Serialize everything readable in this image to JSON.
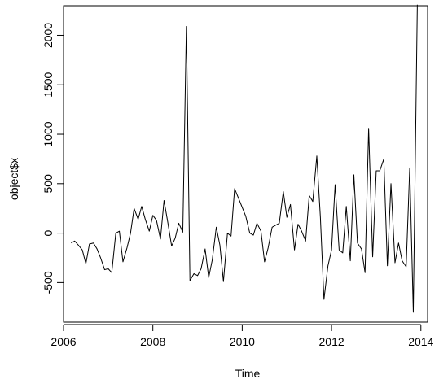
{
  "chart_data": {
    "type": "line",
    "title": "",
    "xlabel": "Time",
    "ylabel": "object$x",
    "xlim": [
      2006.0,
      2014.15
    ],
    "ylim": [
      -900,
      2300
    ],
    "xticks": [
      2006,
      2008,
      2010,
      2012,
      2014
    ],
    "yticks": [
      -500,
      0,
      500,
      1000,
      1500,
      2000
    ],
    "xtick_labels": [
      "2006",
      "2008",
      "2010",
      "2012",
      "2014"
    ],
    "ytick_labels": [
      "-500",
      "0",
      "500",
      "1000",
      "1500",
      "2000"
    ],
    "grid": false,
    "legend": "none",
    "line_color": "#000000",
    "series": [
      {
        "x": [
          2006.17,
          2006.25,
          2006.33,
          2006.42,
          2006.5,
          2006.58,
          2006.67,
          2006.75,
          2006.83,
          2006.92,
          2007.0,
          2007.08,
          2007.17,
          2007.25,
          2007.33,
          2007.42,
          2007.5,
          2007.58,
          2007.67,
          2007.75,
          2007.83,
          2007.92,
          2008.0,
          2008.08,
          2008.17,
          2008.25,
          2008.33,
          2008.42,
          2008.5,
          2008.58,
          2008.67,
          2008.75,
          2008.83,
          2008.92,
          2009.0,
          2009.08,
          2009.17,
          2009.25,
          2009.33,
          2009.42,
          2009.5,
          2009.58,
          2009.67,
          2009.75,
          2009.83,
          2009.92,
          2010.0,
          2010.08,
          2010.17,
          2010.25,
          2010.33,
          2010.42,
          2010.5,
          2010.58,
          2010.67,
          2010.75,
          2010.83,
          2010.92,
          2011.0,
          2011.08,
          2011.17,
          2011.25,
          2011.33,
          2011.42,
          2011.5,
          2011.58,
          2011.67,
          2011.75,
          2011.83,
          2011.92,
          2012.0,
          2012.08,
          2012.17,
          2012.25,
          2012.33,
          2012.42,
          2012.5,
          2012.58,
          2012.67,
          2012.75,
          2012.83,
          2012.92,
          2013.0,
          2013.08,
          2013.17,
          2013.25,
          2013.33,
          2013.42,
          2013.5,
          2013.58,
          2013.67,
          2013.75,
          2013.83,
          2013.92
        ],
        "values": [
          -100,
          -80,
          -120,
          -170,
          -310,
          -110,
          -100,
          -160,
          -250,
          -370,
          -360,
          -400,
          0,
          20,
          -290,
          -150,
          0,
          250,
          140,
          270,
          140,
          20,
          180,
          130,
          -60,
          330,
          120,
          -130,
          -50,
          100,
          10,
          2090,
          -480,
          -410,
          -430,
          -360,
          -160,
          -450,
          -270,
          60,
          -120,
          -490,
          0,
          -30,
          450,
          350,
          260,
          170,
          0,
          -20,
          100,
          20,
          -290,
          -150,
          60,
          80,
          100,
          420,
          160,
          290,
          -170,
          90,
          20,
          -80,
          380,
          320,
          780,
          160,
          -670,
          -330,
          -170,
          490,
          -170,
          -200,
          270,
          -280,
          590,
          -100,
          -160,
          -400,
          1060,
          -240,
          630,
          630,
          750,
          -330,
          500,
          -300,
          -100,
          -280,
          -340,
          660,
          -800,
          2310
        ]
      }
    ]
  }
}
